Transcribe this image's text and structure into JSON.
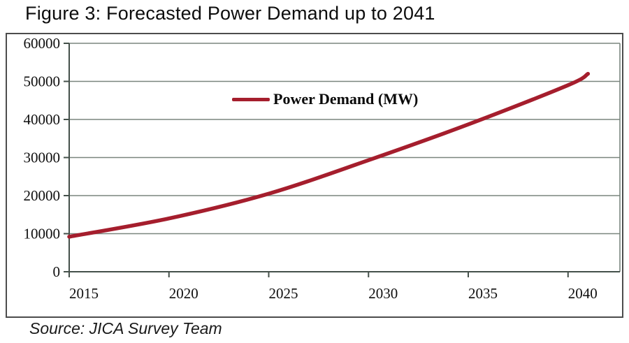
{
  "figure_title": "Figure 3: Forecasted Power Demand up to 2041",
  "source_note": "Source: JICA Survey Team",
  "chart_data": {
    "type": "line",
    "title": "Figure 3: Forecasted Power Demand up to 2041",
    "legend_label": "Power Demand (MW)",
    "legend_position": "top-center",
    "grid": "horizontal",
    "xlabel": "",
    "ylabel": "",
    "xlim": [
      2015,
      2042.6
    ],
    "ylim": [
      0,
      60000
    ],
    "xticks": [
      2015,
      2020,
      2025,
      2030,
      2035,
      2040
    ],
    "yticks": [
      0,
      10000,
      20000,
      30000,
      40000,
      50000,
      60000
    ],
    "series": [
      {
        "name": "Power Demand (MW)",
        "x": [
          2015,
          2020,
          2025,
          2030,
          2035,
          2040,
          2041
        ],
        "values": [
          9200,
          14000,
          20500,
          29300,
          38700,
          49000,
          52000
        ]
      }
    ],
    "colors": {
      "line": "#a51e2d",
      "gridline": "#7a867e",
      "axis": "#44504a",
      "frame_border": "#4c4c4c",
      "text": "#0f0f0f"
    }
  }
}
